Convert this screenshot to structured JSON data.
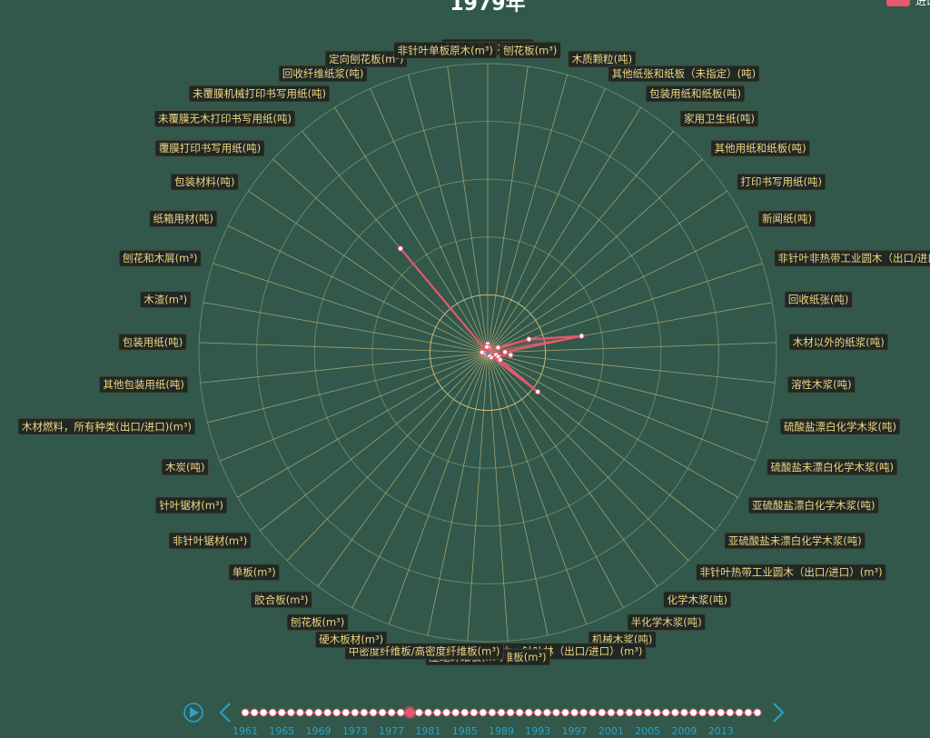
{
  "chart_data": {
    "type": "radar",
    "title": "1979年",
    "legend": {
      "label": "进口",
      "color": "#e8566f",
      "position": "top-right"
    },
    "indicators": [
      "针叶单板原木(m³)",
      "刨花板(m³)",
      "木质颗粒(吨)",
      "其他纸张和纸板（未指定）(吨)",
      "包装用纸和纸板(吨)",
      "家用卫生纸(吨)",
      "其他用纸和纸板(吨)",
      "打印书写用纸(吨)",
      "新闻纸(吨)",
      "非针叶非热带工业圆木（出口/进口）(m³)",
      "回收纸张(吨)",
      "木材以外的纸浆(吨)",
      "溶性木浆(吨)",
      "硫酸盐漂白化学木浆(吨)",
      "硫酸盐未漂白化学木浆(吨)",
      "亚硫酸盐漂白化学木浆(吨)",
      "亚硫酸盐未漂白化学木浆(吨)",
      "非针叶热带工业圆木（出口/进口）(m³)",
      "化学木浆(吨)",
      "半化学木浆(吨)",
      "机械木浆(吨)",
      "工业用圆木，针叶林（出口/进口）(m³)",
      "其他纤维板(m³)",
      "压缩纤维板(m³)",
      "中密度纤维板/高密度纤维板(m³)",
      "硬木板材(m³)",
      "刨花板(m³)",
      "胶合板(m³)",
      "单板(m³)",
      "非针叶锯材(m³)",
      "针叶锯材(m³)",
      "木炭(吨)",
      "木材燃料，所有种类(出口/进口)(m³)",
      "其他包装用纸(吨)",
      "包装用纸(吨)",
      "木渣(m³)",
      "刨花和木屑(m³)",
      "纸箱用材(吨)",
      "包装材料(吨)",
      "覆膜打印书写用纸(吨)",
      "未覆膜无木打印书写用纸(吨)",
      "未覆膜机械打印书写用纸(吨)",
      "回收纤维纸浆(吨)",
      "定向刨花板(m³)",
      "非针叶单板原木(m³)"
    ],
    "series": [
      {
        "name": "进口",
        "values": [
          0.03,
          0.02,
          0,
          0,
          0,
          0,
          0,
          0,
          0.04,
          0.15,
          0.33,
          0.06,
          0.08,
          0.03,
          0.04,
          0.05,
          0.22,
          0.02,
          0.02,
          0.01,
          0,
          0,
          0,
          0,
          0,
          0,
          0,
          0,
          0,
          0,
          0,
          0,
          0,
          0.01,
          0.02,
          0,
          0,
          0,
          0,
          0,
          0.47,
          0,
          0,
          0,
          0.02
        ]
      }
    ],
    "rmax": 1,
    "grid": true
  },
  "timeline": {
    "years": [
      "1961",
      "1965",
      "1969",
      "1973",
      "1977",
      "1981",
      "1985",
      "1989",
      "1993",
      "1997",
      "2001",
      "2005",
      "2009",
      "2013"
    ],
    "point_count": 57,
    "current_index": 18,
    "play_icon": "play-icon",
    "prev_icon": "chevron-left-icon",
    "next_icon": "chevron-right-icon"
  }
}
